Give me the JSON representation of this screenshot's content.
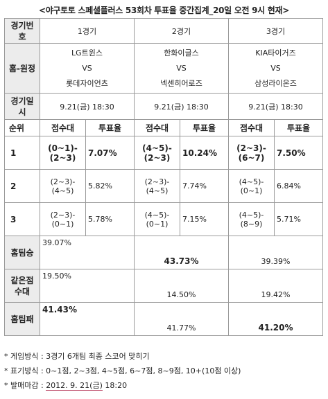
{
  "title": "<야구토토 스페셜플러스 53회차 투표율 중간집계_20일 오전 9시 현재>",
  "table": {
    "row_labels": {
      "game_no": "경기번호",
      "home_away": "홈-원정",
      "date": "경기일시",
      "rank": "순위",
      "score_band": "점수대",
      "vote_rate": "투표율",
      "home_win": "홈팀승",
      "tie": "같은점수대",
      "home_loss": "홈팀패"
    },
    "games": [
      {
        "label": "1경기",
        "home": "LG트윈스",
        "vs": "VS",
        "away": "롯데자이언츠",
        "datetime": "9.21(금) 18:30",
        "ranks": [
          {
            "score": "(0~1)-(2~3)",
            "rate": "7.07%"
          },
          {
            "score": "(2~3)-(4~5)",
            "rate": "5.82%"
          },
          {
            "score": "(2~3)-(0~1)",
            "rate": "5.78%"
          }
        ],
        "home_win": "39.07%",
        "tie": "19.50%",
        "home_loss": "41.43%"
      },
      {
        "label": "2경기",
        "home": "한화이글스",
        "vs": "VS",
        "away": "넥센히어로즈",
        "datetime": "9.21(금) 18:30",
        "ranks": [
          {
            "score": "(4~5)-(2~3)",
            "rate": "10.24%"
          },
          {
            "score": "(2~3)-(4~5)",
            "rate": "7.74%"
          },
          {
            "score": "(4~5)-(0~1)",
            "rate": "7.15%"
          }
        ],
        "home_win": "43.73%",
        "tie": "14.50%",
        "home_loss": "41.77%"
      },
      {
        "label": "3경기",
        "home": "KIA타이거즈",
        "vs": "VS",
        "away": "삼성라이온즈",
        "datetime": "9.21(금) 18:30",
        "ranks": [
          {
            "score": "(2~3)-(6~7)",
            "rate": "7.50%"
          },
          {
            "score": "(4~5)-(0~1)",
            "rate": "6.84%"
          },
          {
            "score": "(4~5)-(8~9)",
            "rate": "5.71%"
          }
        ],
        "home_win": "39.39%",
        "tie": "19.42%",
        "home_loss": "41.20%"
      }
    ],
    "rank_numbers": [
      "1",
      "2",
      "3"
    ]
  },
  "notes": [
    "* 게임방식 : 3경기 6개팀 최종 스코어 맞히기",
    "* 표기방식 : 0~1점, 2~3점, 4~5점, 6~7점, 8~9점, 10+(10점 이상)"
  ],
  "deadline": {
    "prefix": "* 발매마감 : ",
    "date": "2012. 9. 21(금)",
    "time": " 18:20"
  }
}
